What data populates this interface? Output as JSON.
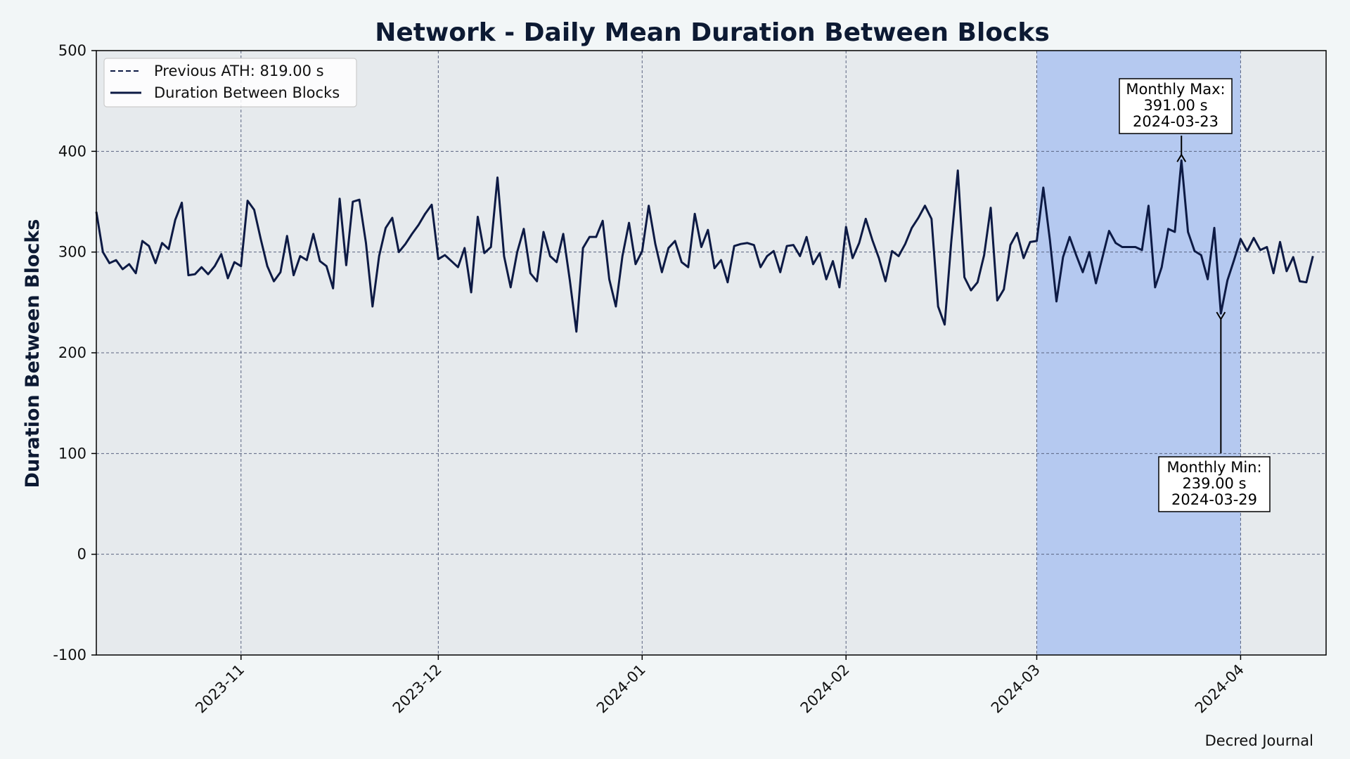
{
  "chart_data": {
    "type": "line",
    "title": "Network - Daily Mean Duration Between Blocks",
    "xlabel": "",
    "ylabel": "Duration Between Blocks",
    "ylim": [
      -100,
      500
    ],
    "yticks": [
      -100,
      0,
      100,
      200,
      300,
      400,
      500
    ],
    "xlim": [
      "2023-10-10",
      "2024-04-14"
    ],
    "xticks": [
      "2023-11",
      "2023-12",
      "2024-01",
      "2024-02",
      "2024-03",
      "2024-04"
    ],
    "grid": true,
    "legend_position": "top-left",
    "highlight_range": [
      "2024-03-01",
      "2024-04-01"
    ],
    "x_start": "2023-10-10",
    "series": [
      {
        "name": "Duration Between Blocks",
        "color": "#0d1a44",
        "values": [
          340,
          300,
          289,
          292,
          283,
          288,
          279,
          311,
          306,
          289,
          309,
          303,
          332,
          349,
          277,
          278,
          285,
          278,
          286,
          298,
          274,
          290,
          286,
          351,
          342,
          313,
          286,
          271,
          280,
          316,
          277,
          296,
          292,
          318,
          291,
          286,
          264,
          353,
          287,
          350,
          352,
          309,
          246,
          296,
          324,
          334,
          300,
          308,
          318,
          327,
          338,
          347,
          293,
          297,
          291,
          285,
          304,
          260,
          335,
          299,
          305,
          374,
          296,
          265,
          300,
          323,
          279,
          271,
          320,
          296,
          290,
          318,
          272,
          221,
          304,
          315,
          315,
          331,
          273,
          246,
          296,
          329,
          288,
          301,
          346,
          308,
          280,
          304,
          311,
          290,
          285,
          338,
          305,
          322,
          284,
          292,
          270,
          306,
          308,
          309,
          307,
          285,
          296,
          301,
          280,
          306,
          307,
          296,
          315,
          288,
          299,
          273,
          291,
          265,
          325,
          294,
          309,
          333,
          312,
          294,
          271,
          301,
          296,
          308,
          324,
          334,
          346,
          333,
          246,
          228,
          310,
          381,
          275,
          262,
          270,
          297,
          344,
          252,
          263,
          307,
          319,
          294,
          310,
          311,
          364,
          312,
          251,
          295,
          315,
          297,
          280,
          300,
          269,
          295,
          321,
          309,
          305,
          305,
          305,
          302,
          346,
          265,
          285,
          323,
          320,
          391,
          320,
          301,
          297,
          273,
          324,
          239,
          272,
          292,
          313,
          301,
          314,
          302,
          305,
          279,
          310,
          281,
          295,
          271,
          270,
          296
        ]
      },
      {
        "name": "Previous ATH: 819.00 s",
        "color": "#0d1a44",
        "style": "dashed",
        "value": 819
      }
    ],
    "annotations": [
      {
        "lines": [
          "Monthly Max:",
          "391.00 s",
          "2024-03-23"
        ],
        "date": "2024-03-23",
        "value": 391
      },
      {
        "lines": [
          "Monthly Min:",
          "239.00 s",
          "2024-03-29"
        ],
        "date": "2024-03-29",
        "value": 239
      }
    ]
  },
  "footer": {
    "credit": "Decred Journal"
  },
  "colors": {
    "background": "#f2f6f7",
    "plot_background": "#e6eaed",
    "highlight": "#b5c9f0",
    "grid": "#5a6380",
    "line": "#0d1a44"
  }
}
